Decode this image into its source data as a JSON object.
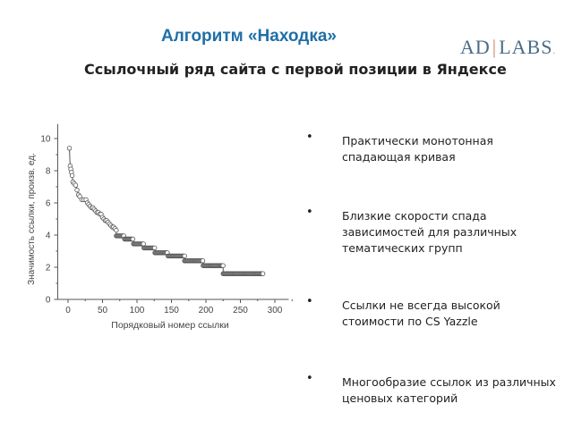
{
  "slide": {
    "title": "Алгоритм «Находка»",
    "subtitle": "Ссылочный ряд сайта с первой позиции в Яндексе",
    "logo": {
      "left": "AD",
      "right": "LABS",
      "dot": "."
    },
    "bullets": [
      "Практически монотонная спадающая кривая",
      "Близкие скорости спада зависимостей для различных тематических групп",
      "Ссылки не всегда высокой стоимости по CS Yazzle",
      "Многообразие ссылок из различных ценовых категорий"
    ]
  },
  "chart_data": {
    "type": "scatter",
    "title": "",
    "xlabel": "Порядковый номер ссылки",
    "ylabel": "Значимость ссылки, произв. ед.",
    "xlim": [
      -15,
      320
    ],
    "ylim": [
      0,
      10.9
    ],
    "xticks": [
      0,
      50,
      100,
      150,
      200,
      250,
      300
    ],
    "yticks": [
      0,
      2,
      4,
      6,
      8,
      10
    ],
    "grid": false,
    "marker": "open-circle",
    "connected": true,
    "points": {
      "x": [
        2,
        3,
        4,
        5,
        6,
        7,
        9,
        11,
        13,
        15,
        17,
        20,
        23,
        26,
        28,
        30,
        32,
        34,
        36,
        38,
        40,
        42,
        44,
        46,
        48,
        50,
        52,
        54,
        56,
        58,
        60,
        62,
        64,
        66,
        68,
        70
      ],
      "y": [
        9.4,
        8.3,
        8.1,
        7.9,
        7.7,
        7.3,
        7.2,
        7.1,
        6.8,
        6.5,
        6.4,
        6.2,
        6.2,
        6.2,
        6.0,
        5.9,
        5.8,
        5.7,
        5.7,
        5.6,
        5.5,
        5.4,
        5.4,
        5.3,
        5.3,
        5.1,
        5.0,
        4.9,
        4.9,
        4.8,
        4.7,
        4.6,
        4.5,
        4.5,
        4.4,
        4.3
      ]
    },
    "steps": [
      {
        "x_start": 70,
        "x_end": 82,
        "y": 3.95
      },
      {
        "x_start": 82,
        "x_end": 95,
        "y": 3.75
      },
      {
        "x_start": 95,
        "x_end": 110,
        "y": 3.45
      },
      {
        "x_start": 110,
        "x_end": 126,
        "y": 3.2
      },
      {
        "x_start": 126,
        "x_end": 145,
        "y": 2.9
      },
      {
        "x_start": 145,
        "x_end": 169,
        "y": 2.7
      },
      {
        "x_start": 169,
        "x_end": 196,
        "y": 2.4
      },
      {
        "x_start": 196,
        "x_end": 225,
        "y": 2.1
      },
      {
        "x_start": 225,
        "x_end": 283,
        "y": 1.6
      }
    ],
    "color": "#555555"
  }
}
